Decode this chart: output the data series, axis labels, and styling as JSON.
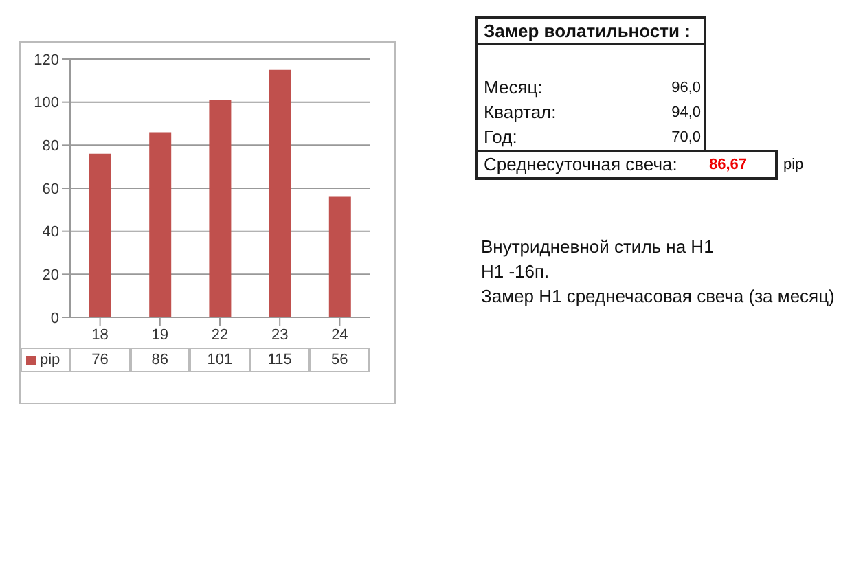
{
  "chart_data": [
    {
      "type": "bar",
      "categories": [
        "18",
        "19",
        "22",
        "23",
        "24"
      ],
      "series": [
        {
          "name": "pip",
          "color": "#c0504d",
          "values": [
            76,
            86,
            101,
            115,
            56
          ]
        }
      ],
      "ylim": [
        0,
        120
      ],
      "yticks": [
        0,
        20,
        40,
        60,
        80,
        100,
        120
      ],
      "grid": "y",
      "legend": "bottom",
      "data_labels": true
    },
    {
      "type": "other",
      "title": "Замер  волатильности  :",
      "annotations": [
        "Месяц:",
        "96,0",
        "Квартал:",
        "94,0",
        "Год:",
        "70,0",
        "Среднесуточная свеча:",
        "86,67",
        "pip",
        "Внутридневной стиль на Н1",
        "Н1 -16п.",
        "Замер Н1 среднечасовая свеча (за месяц)"
      ]
    }
  ]
}
